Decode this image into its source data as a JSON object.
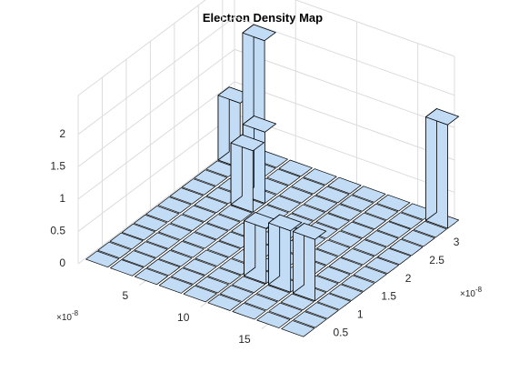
{
  "chart_data": {
    "type": "bar3",
    "title": "Electron Density Map",
    "x_axis": {
      "label": "",
      "exponent_label": "×10",
      "exponent_power": "-8",
      "ticks": [
        5,
        10,
        15
      ],
      "range": [
        0,
        18
      ]
    },
    "y_axis": {
      "label": "",
      "exponent_label": "×10",
      "exponent_power": "-8",
      "ticks": [
        0.5,
        1,
        1.5,
        2,
        2.5,
        3
      ],
      "range": [
        0,
        3.25
      ]
    },
    "z_axis": {
      "label": "",
      "ticks": [
        0,
        0.5,
        1,
        1.5,
        2
      ],
      "range": [
        0,
        2.6
      ]
    },
    "grid": true,
    "bar_color": "#c2dcf5",
    "edge_color": "#000000",
    "grid_x_values": [
      1,
      3,
      5,
      7,
      9,
      11,
      13,
      15,
      17
    ],
    "grid_y_values": [
      0.25,
      0.5,
      0.75,
      1.0,
      1.25,
      1.5,
      1.75,
      2.0,
      2.25,
      2.5,
      2.75,
      3.0,
      3.25
    ],
    "bars": [
      {
        "x": 1,
        "y": 3.0,
        "z": 1.0
      },
      {
        "x": 3,
        "y": 3.0,
        "z": 2.1
      },
      {
        "x": 5,
        "y": 2.5,
        "z": 1.1
      },
      {
        "x": 5,
        "y": 2.25,
        "z": 0.95
      },
      {
        "x": 11,
        "y": 1.0,
        "z": 0.85
      },
      {
        "x": 13,
        "y": 1.0,
        "z": 0.95
      },
      {
        "x": 15,
        "y": 1.0,
        "z": 0.95
      },
      {
        "x": 17,
        "y": 3.25,
        "z": 1.6
      }
    ]
  }
}
